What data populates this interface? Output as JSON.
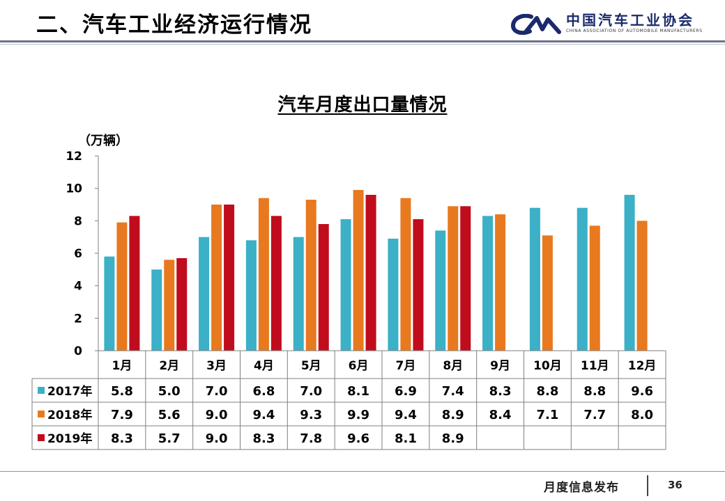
{
  "header": {
    "title": "二、汽车工业经济运行情况",
    "logo_name": "中国汽车工业协会",
    "logo_subtitle": "CHINA ASSOCIATION OF AUTOMOBILE MANUFACTURERS",
    "logo_mark": "logo-cam-icon"
  },
  "footer": {
    "text": "月度信息发布",
    "page_number": "36"
  },
  "colors": {
    "2017": "#3bb0c6",
    "2018": "#e8791f",
    "2019": "#c00c1c",
    "logo": "#1a2a6c"
  },
  "chart_data": {
    "type": "bar",
    "title": "汽车月度出口量情况",
    "ylabel": "（万辆）",
    "ylim": [
      0,
      12
    ],
    "yticks": [
      "0",
      "2",
      "4",
      "6",
      "8",
      "10",
      "12"
    ],
    "categories": [
      "1月",
      "2月",
      "3月",
      "4月",
      "5月",
      "6月",
      "7月",
      "8月",
      "9月",
      "10月",
      "11月",
      "12月"
    ],
    "series": [
      {
        "name": "2017年",
        "values": [
          5.8,
          5.0,
          7.0,
          6.8,
          7.0,
          8.1,
          6.9,
          7.4,
          8.3,
          8.8,
          8.8,
          9.6
        ],
        "labels": [
          "5.8",
          "5.0",
          "7.0",
          "6.8",
          "7.0",
          "8.1",
          "6.9",
          "7.4",
          "8.3",
          "8.8",
          "8.8",
          "9.6"
        ]
      },
      {
        "name": "2018年",
        "values": [
          7.9,
          5.6,
          9.0,
          9.4,
          9.3,
          9.9,
          9.4,
          8.9,
          8.4,
          7.1,
          7.7,
          8.0
        ],
        "labels": [
          "7.9",
          "5.6",
          "9.0",
          "9.4",
          "9.3",
          "9.9",
          "9.4",
          "8.9",
          "8.4",
          "7.1",
          "7.7",
          "8.0"
        ]
      },
      {
        "name": "2019年",
        "values": [
          8.3,
          5.7,
          9.0,
          8.3,
          7.8,
          9.6,
          8.1,
          8.9,
          null,
          null,
          null,
          null
        ],
        "labels": [
          "8.3",
          "5.7",
          "9.0",
          "8.3",
          "7.8",
          "9.6",
          "8.1",
          "8.9",
          "",
          "",
          "",
          ""
        ]
      }
    ],
    "grid": false,
    "legend": "table-left"
  }
}
